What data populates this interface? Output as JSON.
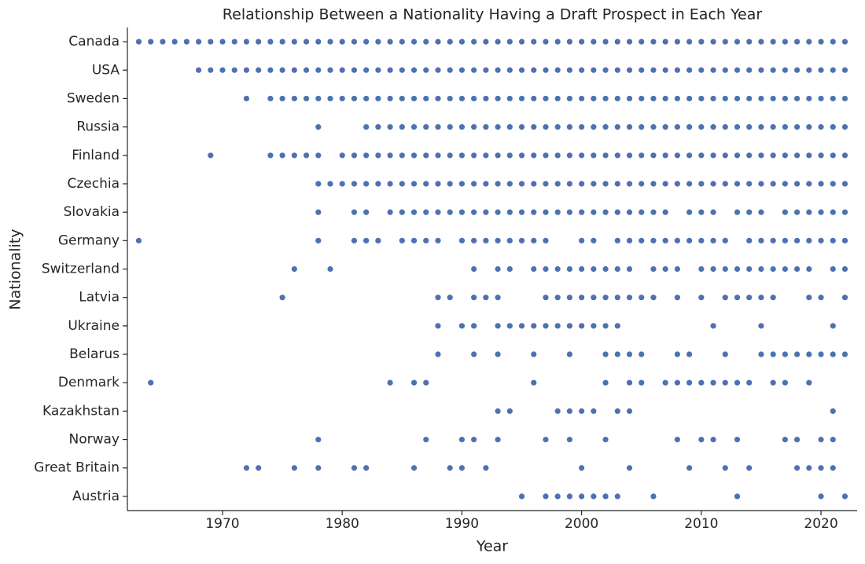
{
  "chart_data": {
    "type": "strip",
    "title": "Relationship Between a Nationality Having a Draft Prospect in Each Year",
    "x_label": "Year",
    "y_label": "Nationality",
    "color": "#4c72b0",
    "xlim": [
      1962.05,
      2023.02
    ],
    "xticks": [
      1970,
      1980,
      1990,
      2000,
      2010,
      2020
    ],
    "categories": [
      "Canada",
      "USA",
      "Sweden",
      "Russia",
      "Finland",
      "Czechia",
      "Slovakia",
      "Germany",
      "Switzerland",
      "Latvia",
      "Ukraine",
      "Belarus",
      "Denmark",
      "Kazakhstan",
      "Norway",
      "Great Britain",
      "Austria"
    ],
    "values": [
      [
        1963,
        1964,
        1965,
        1966,
        1967,
        1968,
        1969,
        1970,
        1971,
        1972,
        1973,
        1974,
        1975,
        1976,
        1977,
        1978,
        1979,
        1980,
        1981,
        1982,
        1983,
        1984,
        1985,
        1986,
        1987,
        1988,
        1989,
        1990,
        1991,
        1992,
        1993,
        1994,
        1995,
        1996,
        1997,
        1998,
        1999,
        2000,
        2001,
        2002,
        2003,
        2004,
        2005,
        2006,
        2007,
        2008,
        2009,
        2010,
        2011,
        2012,
        2013,
        2014,
        2015,
        2016,
        2017,
        2018,
        2019,
        2020,
        2021,
        2022
      ],
      [
        1968,
        1969,
        1970,
        1971,
        1972,
        1973,
        1974,
        1975,
        1976,
        1977,
        1978,
        1979,
        1980,
        1981,
        1982,
        1983,
        1984,
        1985,
        1986,
        1987,
        1988,
        1989,
        1990,
        1991,
        1992,
        1993,
        1994,
        1995,
        1996,
        1997,
        1998,
        1999,
        2000,
        2001,
        2002,
        2003,
        2004,
        2005,
        2006,
        2007,
        2008,
        2009,
        2010,
        2011,
        2012,
        2013,
        2014,
        2015,
        2016,
        2017,
        2018,
        2019,
        2020,
        2021,
        2022
      ],
      [
        1972,
        1974,
        1975,
        1976,
        1977,
        1978,
        1979,
        1980,
        1981,
        1982,
        1983,
        1984,
        1985,
        1986,
        1987,
        1988,
        1989,
        1990,
        1991,
        1992,
        1993,
        1994,
        1995,
        1996,
        1997,
        1998,
        1999,
        2000,
        2001,
        2002,
        2003,
        2004,
        2005,
        2006,
        2007,
        2008,
        2009,
        2010,
        2011,
        2012,
        2013,
        2014,
        2015,
        2016,
        2017,
        2018,
        2019,
        2020,
        2021,
        2022
      ],
      [
        1978,
        1982,
        1983,
        1984,
        1985,
        1986,
        1987,
        1988,
        1989,
        1990,
        1991,
        1992,
        1993,
        1994,
        1995,
        1996,
        1997,
        1998,
        1999,
        2000,
        2001,
        2002,
        2003,
        2004,
        2005,
        2006,
        2007,
        2008,
        2009,
        2010,
        2011,
        2012,
        2013,
        2014,
        2015,
        2016,
        2017,
        2018,
        2019,
        2020,
        2021,
        2022
      ],
      [
        1969,
        1974,
        1975,
        1976,
        1977,
        1978,
        1980,
        1981,
        1982,
        1983,
        1984,
        1985,
        1986,
        1987,
        1988,
        1989,
        1990,
        1991,
        1992,
        1993,
        1994,
        1995,
        1996,
        1997,
        1998,
        1999,
        2000,
        2001,
        2002,
        2003,
        2004,
        2005,
        2006,
        2007,
        2008,
        2009,
        2010,
        2011,
        2012,
        2013,
        2014,
        2015,
        2016,
        2017,
        2018,
        2019,
        2020,
        2021,
        2022
      ],
      [
        1978,
        1979,
        1980,
        1981,
        1982,
        1983,
        1984,
        1985,
        1986,
        1987,
        1988,
        1989,
        1990,
        1991,
        1992,
        1993,
        1994,
        1995,
        1996,
        1997,
        1998,
        1999,
        2000,
        2001,
        2002,
        2003,
        2004,
        2005,
        2006,
        2007,
        2008,
        2009,
        2010,
        2011,
        2012,
        2013,
        2014,
        2015,
        2016,
        2017,
        2018,
        2019,
        2020,
        2021,
        2022
      ],
      [
        1978,
        1981,
        1982,
        1984,
        1985,
        1986,
        1987,
        1988,
        1989,
        1990,
        1991,
        1992,
        1993,
        1994,
        1995,
        1996,
        1997,
        1998,
        1999,
        2000,
        2001,
        2002,
        2003,
        2004,
        2005,
        2006,
        2007,
        2009,
        2010,
        2011,
        2013,
        2014,
        2015,
        2017,
        2018,
        2019,
        2020,
        2021,
        2022
      ],
      [
        1963,
        1978,
        1981,
        1982,
        1983,
        1985,
        1986,
        1987,
        1988,
        1990,
        1991,
        1992,
        1993,
        1994,
        1995,
        1996,
        1997,
        2000,
        2001,
        2003,
        2004,
        2005,
        2006,
        2007,
        2008,
        2009,
        2010,
        2011,
        2012,
        2014,
        2015,
        2016,
        2017,
        2018,
        2019,
        2020,
        2021,
        2022
      ],
      [
        1976,
        1979,
        1991,
        1993,
        1994,
        1996,
        1997,
        1998,
        1999,
        2000,
        2001,
        2002,
        2003,
        2004,
        2006,
        2007,
        2008,
        2010,
        2011,
        2012,
        2013,
        2014,
        2015,
        2016,
        2017,
        2018,
        2019,
        2021,
        2022
      ],
      [
        1975,
        1988,
        1989,
        1991,
        1992,
        1993,
        1997,
        1998,
        1999,
        2000,
        2001,
        2002,
        2003,
        2004,
        2005,
        2006,
        2008,
        2010,
        2012,
        2013,
        2014,
        2015,
        2016,
        2019,
        2020,
        2022
      ],
      [
        1988,
        1990,
        1991,
        1993,
        1994,
        1995,
        1996,
        1997,
        1998,
        1999,
        2000,
        2001,
        2002,
        2003,
        2011,
        2015,
        2021
      ],
      [
        1988,
        1991,
        1993,
        1996,
        1999,
        2002,
        2003,
        2004,
        2005,
        2008,
        2009,
        2012,
        2015,
        2016,
        2017,
        2018,
        2019,
        2020,
        2021,
        2022
      ],
      [
        1964,
        1984,
        1986,
        1987,
        1996,
        2002,
        2004,
        2005,
        2007,
        2008,
        2009,
        2010,
        2011,
        2012,
        2013,
        2014,
        2016,
        2017,
        2019
      ],
      [
        1993,
        1994,
        1998,
        1999,
        2000,
        2001,
        2003,
        2004,
        2021
      ],
      [
        1978,
        1987,
        1990,
        1991,
        1993,
        1997,
        1999,
        2002,
        2008,
        2010,
        2011,
        2013,
        2017,
        2018,
        2020,
        2021
      ],
      [
        1972,
        1973,
        1976,
        1978,
        1981,
        1982,
        1986,
        1989,
        1990,
        1992,
        2000,
        2004,
        2009,
        2012,
        2014,
        2018,
        2019,
        2020,
        2021
      ],
      [
        1995,
        1997,
        1998,
        1999,
        2000,
        2001,
        2002,
        2003,
        2006,
        2013,
        2020,
        2022
      ]
    ]
  }
}
